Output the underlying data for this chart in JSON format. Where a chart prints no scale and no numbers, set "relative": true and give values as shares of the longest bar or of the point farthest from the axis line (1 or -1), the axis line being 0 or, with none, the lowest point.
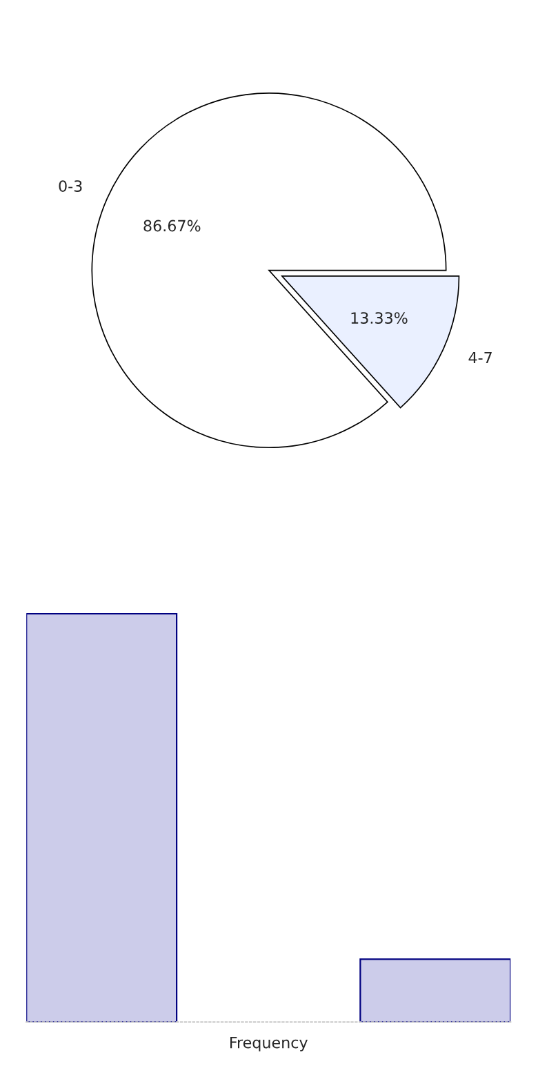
{
  "chart_data": [
    {
      "type": "pie",
      "categories": [
        "0-3",
        "4-7"
      ],
      "values": [
        86.67,
        13.33
      ],
      "colors": [
        "#ffffff",
        "#eaf0ff"
      ],
      "value_labels": [
        "86.67%",
        "13.33%"
      ]
    },
    {
      "type": "bar",
      "categories": [
        null,
        null
      ],
      "relative": true,
      "values": [
        1,
        0.154
      ],
      "color": "#ccccea",
      "xlabel": "Frequency",
      "legend": false,
      "grid": false
    }
  ]
}
